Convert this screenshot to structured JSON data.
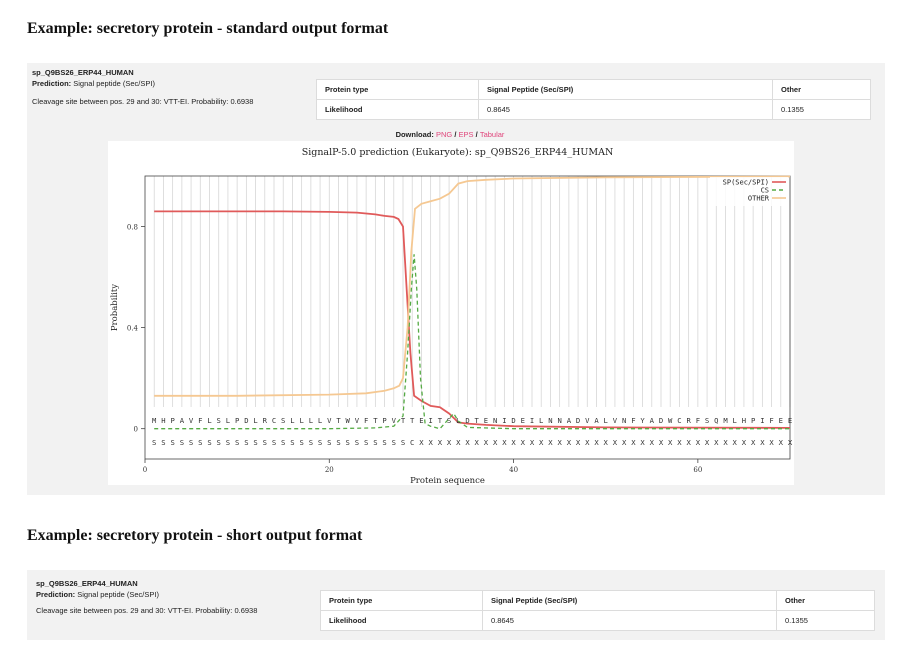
{
  "standard": {
    "heading": "Example: secretory protein - standard output format",
    "entry_id": "sp_Q9BS26_ERP44_HUMAN",
    "prediction_label": "Prediction:",
    "prediction_value": "Signal peptide (Sec/SPI)",
    "cleavage": "Cleavage site between pos. 29 and 30: VTT-EI. Probability: 0.6938",
    "table": {
      "headers": [
        "Protein type",
        "Signal Peptide (Sec/SPI)",
        "Other"
      ],
      "row_label": "Likelihood",
      "values": [
        "0.8645",
        "0.1355"
      ]
    },
    "download": {
      "label": "Download:",
      "links": [
        "PNG",
        "EPS",
        "Tabular"
      ],
      "sep": "/"
    }
  },
  "short": {
    "heading": "Example: secretory protein - short output format",
    "entry_id": "sp_Q9BS26_ERP44_HUMAN",
    "prediction_label": "Prediction:",
    "prediction_value": "Signal peptide (Sec/SPI)",
    "cleavage": "Cleavage site between pos. 29 and 30: VTT-EI. Probability: 0.6938",
    "table": {
      "headers": [
        "Protein type",
        "Signal Peptide (Sec/SPI)",
        "Other"
      ],
      "row_label": "Likelihood",
      "values": [
        "0.8645",
        "0.1355"
      ]
    }
  },
  "chart_data": {
    "type": "line",
    "title": "SignalP-5.0 prediction (Eukaryote):  sp_Q9BS26_ERP44_HUMAN",
    "xlabel": "Protein sequence",
    "ylabel": "Probability",
    "xlim": [
      0,
      70
    ],
    "ylim": [
      -0.12,
      1.0
    ],
    "xticks": [
      0,
      20,
      40,
      60
    ],
    "yticks": [
      0,
      0.4,
      0.8
    ],
    "grid": "vertical per residue",
    "legend": "top-right",
    "sequence": "MHPAVFLSLPDLRCSLLLLVTWVFTPVTTEITSLDTENIDEILNNADVALVNFYADWCRFSQMLHPIFEE",
    "labels": "SSSSSSSSSSSSSSSSSSSSSSSSSSSSCXXXXXXXXXXXXXXXXXXXXXXXXXXXXXXXXXXXXXXXXX",
    "series": [
      {
        "name": "SP(Sec/SPI)",
        "color": "#e05a5a",
        "dash": "",
        "points": [
          [
            1,
            0.86
          ],
          [
            5,
            0.86
          ],
          [
            10,
            0.86
          ],
          [
            15,
            0.86
          ],
          [
            20,
            0.858
          ],
          [
            23,
            0.855
          ],
          [
            25,
            0.848
          ],
          [
            26,
            0.842
          ],
          [
            27,
            0.838
          ],
          [
            27.5,
            0.83
          ],
          [
            28,
            0.8
          ],
          [
            28.4,
            0.55
          ],
          [
            28.8,
            0.3
          ],
          [
            29.2,
            0.13
          ],
          [
            30,
            0.11
          ],
          [
            31,
            0.09
          ],
          [
            32,
            0.085
          ],
          [
            33,
            0.06
          ],
          [
            34,
            0.025
          ],
          [
            35,
            0.02
          ],
          [
            37,
            0.015
          ],
          [
            40,
            0.01
          ],
          [
            50,
            0.005
          ],
          [
            70,
            0.003
          ]
        ]
      },
      {
        "name": "CS",
        "color": "#55aa44",
        "dash": "4,3",
        "points": [
          [
            1,
            0.0
          ],
          [
            20,
            0.0
          ],
          [
            25,
            0.003
          ],
          [
            27,
            0.01
          ],
          [
            28,
            0.05
          ],
          [
            28.5,
            0.3
          ],
          [
            28.9,
            0.55
          ],
          [
            29.2,
            0.69
          ],
          [
            29.5,
            0.55
          ],
          [
            29.9,
            0.2
          ],
          [
            30.4,
            0.02
          ],
          [
            31,
            0.01
          ],
          [
            32,
            0.0
          ],
          [
            33,
            0.04
          ],
          [
            33.5,
            0.06
          ],
          [
            34,
            0.03
          ],
          [
            35,
            0.005
          ],
          [
            40,
            0.0
          ],
          [
            70,
            0.0
          ]
        ]
      },
      {
        "name": "OTHER",
        "color": "#f5c892",
        "dash": "",
        "points": [
          [
            1,
            0.13
          ],
          [
            10,
            0.13
          ],
          [
            20,
            0.135
          ],
          [
            24,
            0.14
          ],
          [
            26,
            0.15
          ],
          [
            27,
            0.16
          ],
          [
            27.6,
            0.17
          ],
          [
            28,
            0.2
          ],
          [
            28.5,
            0.4
          ],
          [
            28.9,
            0.7
          ],
          [
            29.3,
            0.87
          ],
          [
            30,
            0.89
          ],
          [
            31,
            0.9
          ],
          [
            32,
            0.91
          ],
          [
            33,
            0.93
          ],
          [
            34,
            0.97
          ],
          [
            35,
            0.98
          ],
          [
            37,
            0.985
          ],
          [
            40,
            0.99
          ],
          [
            50,
            0.995
          ],
          [
            70,
            0.998
          ]
        ]
      }
    ]
  }
}
